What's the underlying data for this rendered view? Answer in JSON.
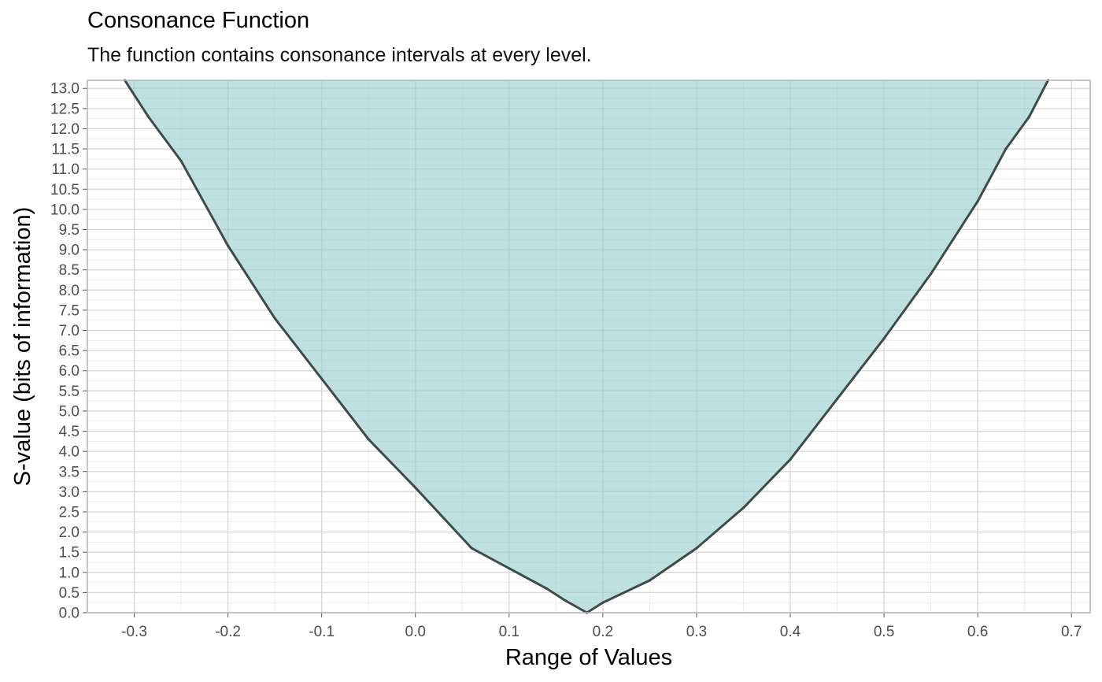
{
  "title": "Consonance Function",
  "subtitle": "The function contains consonance intervals at every level.",
  "colors": {
    "fill": "#9ccfcf",
    "line": "#3c4c4c",
    "grid_major": "#d6d6d6",
    "grid_minor": "#ececec",
    "panel_border": "#b3b3b3"
  },
  "chart_data": {
    "type": "area",
    "title": "Consonance Function",
    "subtitle": "The function contains consonance intervals at every level.",
    "xlabel": "Range of Values",
    "ylabel": "S-value (bits of information)",
    "xlim": [
      -0.35,
      0.72
    ],
    "ylim": [
      0.0,
      13.2
    ],
    "xticks": [
      "-0.3",
      "-0.2",
      "-0.1",
      "0.0",
      "0.1",
      "0.2",
      "0.3",
      "0.4",
      "0.5",
      "0.6",
      "0.7"
    ],
    "yticks": [
      "0.0",
      "0.5",
      "1.0",
      "1.5",
      "2.0",
      "2.5",
      "3.0",
      "3.5",
      "4.0",
      "4.5",
      "5.0",
      "5.5",
      "6.0",
      "6.5",
      "7.0",
      "7.5",
      "8.0",
      "8.5",
      "9.0",
      "9.5",
      "10.0",
      "10.5",
      "11.0",
      "11.5",
      "12.0",
      "12.5",
      "13.0"
    ],
    "grid": true,
    "series": [
      {
        "lower": [
          [
            0.183,
            0.0
          ],
          [
            0.16,
            0.3
          ],
          [
            0.14,
            0.6
          ],
          [
            0.12,
            0.85
          ],
          [
            0.1,
            1.1
          ],
          [
            0.06,
            1.6
          ],
          [
            0.0,
            3.1
          ],
          [
            -0.05,
            4.3
          ],
          [
            -0.1,
            5.8
          ],
          [
            -0.15,
            7.3
          ],
          [
            -0.2,
            9.1
          ],
          [
            -0.25,
            11.2
          ],
          [
            -0.285,
            12.3
          ],
          [
            -0.31,
            13.2
          ]
        ],
        "upper": [
          [
            0.183,
            0.0
          ],
          [
            0.2,
            0.25
          ],
          [
            0.25,
            0.8
          ],
          [
            0.3,
            1.6
          ],
          [
            0.35,
            2.6
          ],
          [
            0.4,
            3.8
          ],
          [
            0.45,
            5.3
          ],
          [
            0.5,
            6.8
          ],
          [
            0.55,
            8.4
          ],
          [
            0.6,
            10.2
          ],
          [
            0.63,
            11.5
          ],
          [
            0.655,
            12.3
          ],
          [
            0.675,
            13.2
          ]
        ]
      }
    ]
  }
}
